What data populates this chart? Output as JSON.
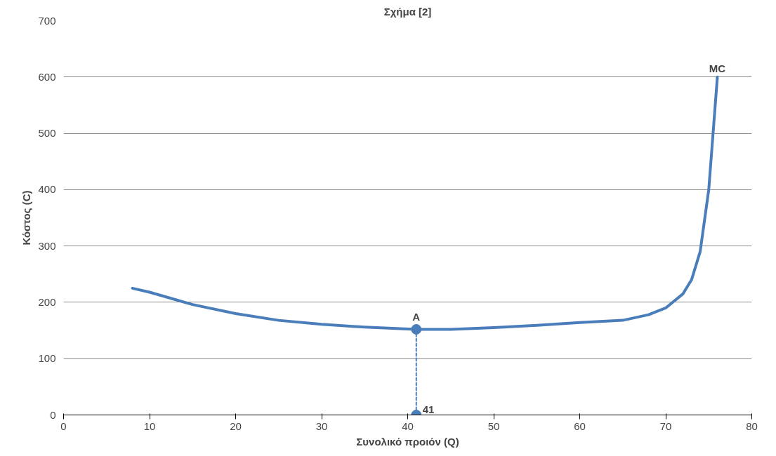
{
  "chart_data": {
    "type": "line",
    "title": "Σχήμα [2]",
    "xlabel": "Συνολικό προιόν (Q)",
    "ylabel": "Κόστος (C)",
    "xlim": [
      0,
      80
    ],
    "xticks": [
      0,
      10,
      20,
      30,
      40,
      50,
      60,
      70,
      80
    ],
    "ylim": [
      0,
      700
    ],
    "yticks": [
      0,
      100,
      200,
      300,
      400,
      500,
      600,
      700
    ],
    "grid": "y",
    "series": [
      {
        "name": "MC",
        "color": "#4a7ebb",
        "marker": "none",
        "line_style": "solid",
        "x": [
          8,
          10,
          15,
          20,
          25,
          30,
          35,
          41,
          45,
          50,
          55,
          60,
          65,
          68,
          70,
          72,
          73,
          74,
          75,
          75.5,
          76
        ],
        "values": [
          225,
          218,
          196,
          180,
          168,
          161,
          156,
          152,
          152,
          155,
          159,
          164,
          168,
          178,
          190,
          215,
          240,
          290,
          400,
          500,
          600
        ]
      },
      {
        "color": "#4a7ebb",
        "marker": "circle",
        "line_style": "dashed",
        "x": [
          41,
          41
        ],
        "values": [
          0,
          152
        ]
      }
    ],
    "annotations": [
      {
        "text": "A",
        "x": 41,
        "y": 152
      },
      {
        "text": "41",
        "x": 41,
        "y": 0
      }
    ]
  }
}
